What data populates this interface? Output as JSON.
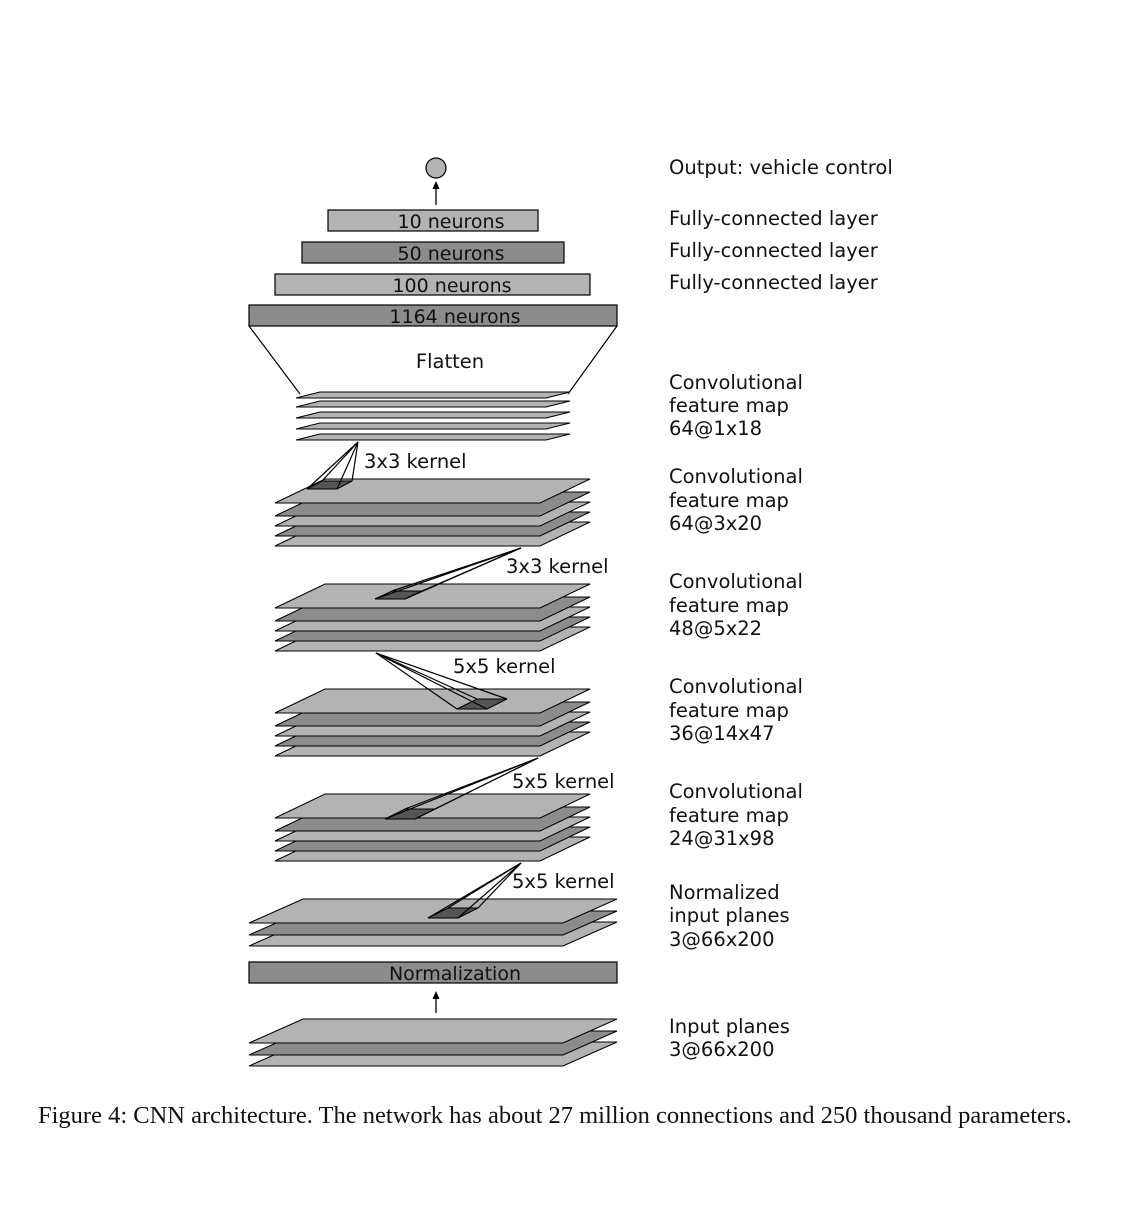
{
  "diagram": {
    "output_label": "Output: vehicle control",
    "dense_layers": [
      {
        "text": "10 neurons",
        "side_label": "Fully-connected layer",
        "fill": "#b3b3b3"
      },
      {
        "text": "50 neurons",
        "side_label": "Fully-connected layer",
        "fill": "#8c8c8c"
      },
      {
        "text": "100 neurons",
        "side_label": "Fully-connected layer",
        "fill": "#b3b3b3"
      },
      {
        "text": "1164 neurons",
        "side_label": "",
        "fill": "#8c8c8c"
      }
    ],
    "flatten_label": "Flatten",
    "feature_maps": [
      {
        "line1": "Convolutional",
        "line2": "feature map",
        "line3": "64@1x18"
      },
      {
        "line1": "Convolutional",
        "line2": "feature map",
        "line3": "64@3x20"
      },
      {
        "line1": "Convolutional",
        "line2": "feature map",
        "line3": "48@5x22"
      },
      {
        "line1": "Convolutional",
        "line2": "feature map",
        "line3": "36@14x47"
      },
      {
        "line1": "Convolutional",
        "line2": "feature map",
        "line3": "24@31x98"
      },
      {
        "line1": "Normalized",
        "line2": "input planes",
        "line3": "3@66x200"
      }
    ],
    "kernels": [
      "3x3 kernel",
      "3x3 kernel",
      "5x5 kernel",
      "5x5 kernel",
      "5x5 kernel"
    ],
    "normalization_label": "Normalization",
    "input_planes": {
      "line1": "Input planes",
      "line2": "3@66x200"
    },
    "colors": {
      "plane_light": "#b3b3b3",
      "plane_dark": "#8c8c8c",
      "kernel_patch": "#555555",
      "stroke": "#000000"
    }
  },
  "caption": "Figure 4:  CNN architecture.  The network has about 27 million connections and 250 thousand parameters."
}
